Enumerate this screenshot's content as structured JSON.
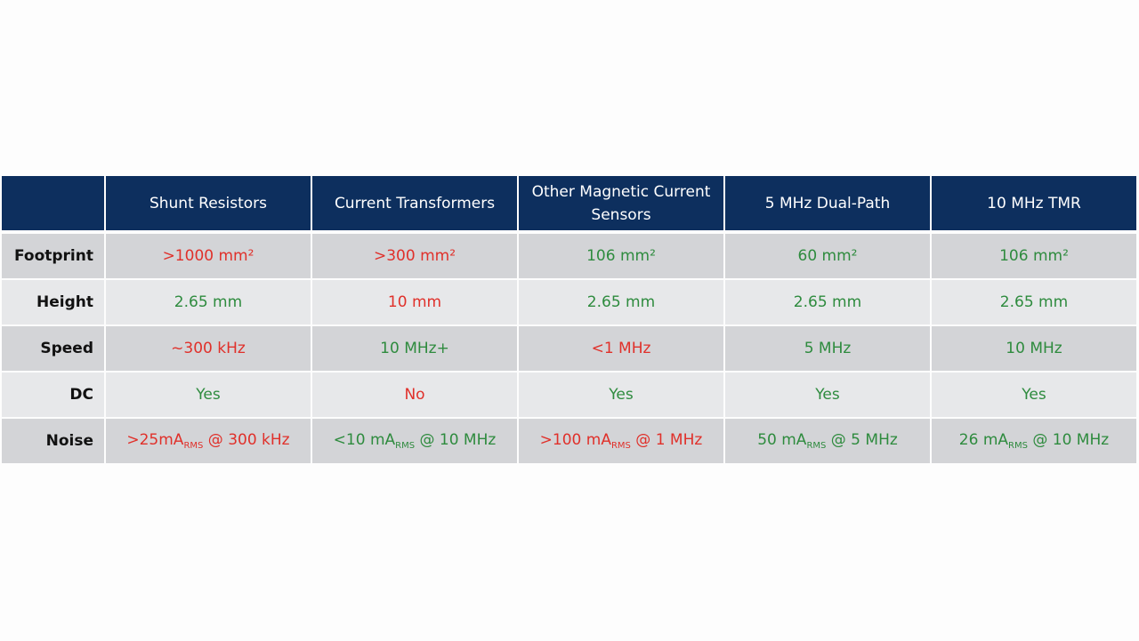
{
  "table": {
    "header": [
      "Shunt Resistors",
      "Current Transformers",
      "Other Magnetic Current Sensors",
      "5 MHz Dual-Path",
      "10 MHz TMR"
    ],
    "header_color": "#0d2f5e",
    "rows": [
      {
        "label": "Footprint",
        "cells": [
          {
            "text": ">1000 mm²",
            "color": "#e0302a"
          },
          {
            "text": ">300 mm²",
            "color": "#e0302a"
          },
          {
            "text": "106 mm²",
            "color": "#2e8b3e"
          },
          {
            "text": "60 mm²",
            "color": "#2e8b3e"
          },
          {
            "text": "106 mm²",
            "color": "#2e8b3e"
          }
        ]
      },
      {
        "label": "Height",
        "cells": [
          {
            "text": "2.65 mm",
            "color": "#2e8b3e"
          },
          {
            "text": "10 mm",
            "color": "#e0302a"
          },
          {
            "text": "2.65 mm",
            "color": "#2e8b3e"
          },
          {
            "text": "2.65 mm",
            "color": "#2e8b3e"
          },
          {
            "text": "2.65 mm",
            "color": "#2e8b3e"
          }
        ]
      },
      {
        "label": "Speed",
        "cells": [
          {
            "text": "~300 kHz",
            "color": "#e0302a"
          },
          {
            "text": "10 MHz+",
            "color": "#2e8b3e"
          },
          {
            "text": "<1 MHz",
            "color": "#e0302a"
          },
          {
            "text": "5 MHz",
            "color": "#2e8b3e"
          },
          {
            "text": "10 MHz",
            "color": "#2e8b3e"
          }
        ]
      },
      {
        "label": "DC",
        "cells": [
          {
            "text": "Yes",
            "color": "#2e8b3e"
          },
          {
            "text": "No",
            "color": "#e0302a"
          },
          {
            "text": "Yes",
            "color": "#2e8b3e"
          },
          {
            "text": "Yes",
            "color": "#2e8b3e"
          },
          {
            "text": "Yes",
            "color": "#2e8b3e"
          }
        ]
      },
      {
        "label": "Noise",
        "cells": [
          {
            "text": ">25mA",
            "sub": "RMS",
            "after": " @ 300 kHz",
            "color": "#e0302a"
          },
          {
            "text": "<10 mA",
            "sub": "RMS",
            "after": " @ 10 MHz",
            "color": "#2e8b3e"
          },
          {
            "text": ">100 mA",
            "sub": "RMS",
            "after": " @ 1 MHz",
            "color": "#e0302a"
          },
          {
            "text": "50 mA",
            "sub": "RMS",
            "after": " @ 5 MHz",
            "color": "#2e8b3e"
          },
          {
            "text": "26 mA",
            "sub": "RMS",
            "after": " @ 10 MHz",
            "color": "#2e8b3e"
          }
        ]
      }
    ]
  }
}
